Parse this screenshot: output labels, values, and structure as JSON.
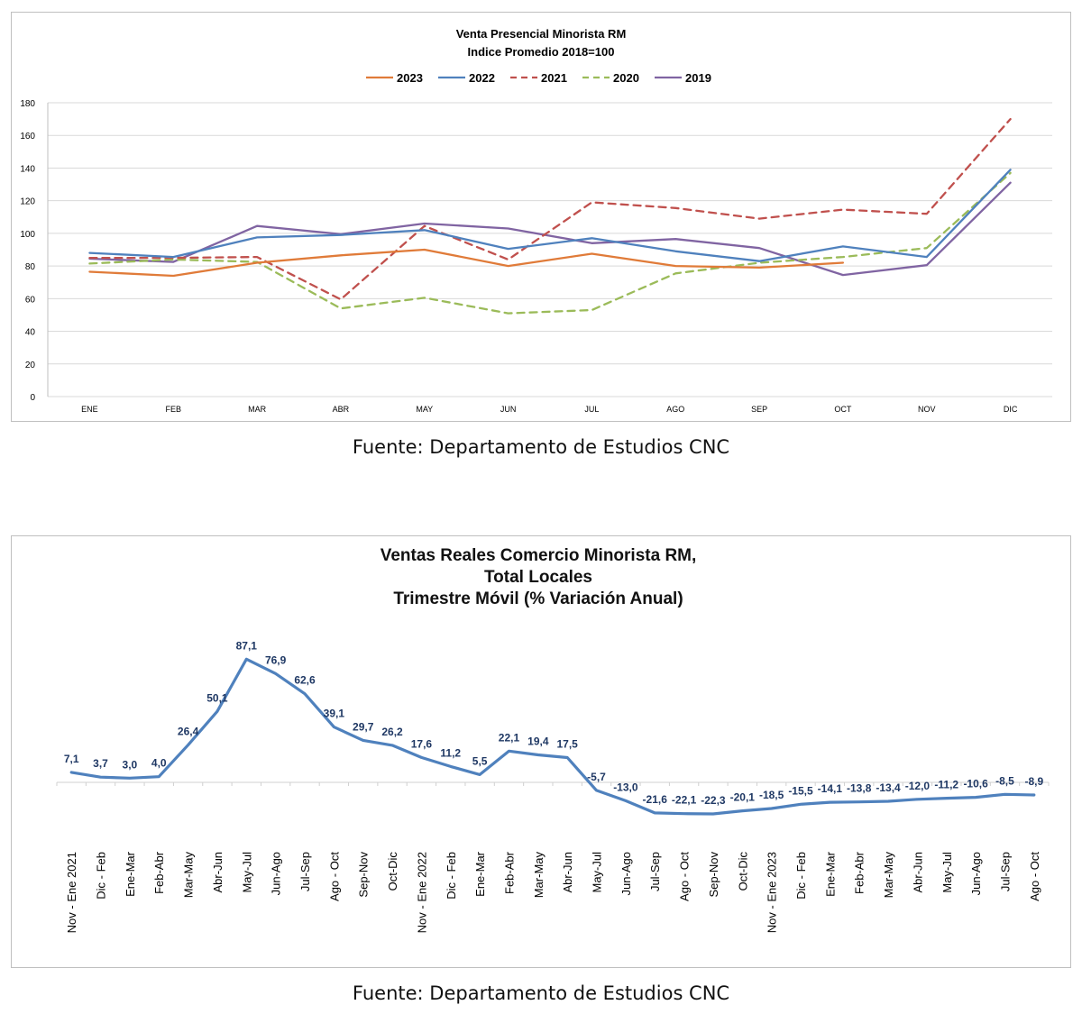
{
  "charts": [
    {
      "id": "retail",
      "source": "Fuente: Departamento de Estudios CNC",
      "chart_data": {
        "type": "line",
        "title": "Venta Presencial Minorista RM",
        "subtitle": "Indice Promedio 2018=100",
        "categories": [
          "ENE",
          "FEB",
          "MAR",
          "ABR",
          "MAY",
          "JUN",
          "JUL",
          "AGO",
          "SEP",
          "OCT",
          "NOV",
          "DIC"
        ],
        "ylim": [
          0,
          180
        ],
        "yticks": [
          0,
          20,
          40,
          60,
          80,
          100,
          120,
          140,
          160,
          180
        ],
        "grid": true,
        "legend_position": "top",
        "series": [
          {
            "name": "2023",
            "color": "#E07B39",
            "dashed": false,
            "values": [
              76.5,
              74,
              82,
              86.5,
              90,
              80,
              87.5,
              80,
              79,
              82,
              null,
              null
            ]
          },
          {
            "name": "2022",
            "color": "#4F81BD",
            "dashed": false,
            "values": [
              88,
              85.5,
              97.5,
              99,
              102,
              90.5,
              97,
              89,
              83,
              92,
              85.5,
              139
            ]
          },
          {
            "name": "2021",
            "color": "#C0504D",
            "dashed": true,
            "values": [
              85,
              85,
              85.5,
              59.5,
              104.5,
              84,
              119,
              115.5,
              109,
              114.5,
              112,
              170
            ]
          },
          {
            "name": "2020",
            "color": "#9BBB59",
            "dashed": true,
            "values": [
              81.5,
              84,
              82.5,
              54,
              60.5,
              51,
              53,
              75.5,
              82,
              85.5,
              91,
              137
            ]
          },
          {
            "name": "2019",
            "color": "#8064A2",
            "dashed": false,
            "values": [
              84.5,
              82.5,
              104.5,
              99.5,
              106,
              103,
              94,
              96.5,
              91,
              74.5,
              80.5,
              131
            ]
          }
        ]
      }
    },
    {
      "id": "realsales",
      "source": "Fuente: Departamento de Estudios CNC",
      "chart_data": {
        "type": "line",
        "title_lines": [
          "Ventas Reales Comercio Minorista RM,",
          "Total Locales",
          "Trimestre Móvil (% Variación Anual)"
        ],
        "color": "#4F81BD",
        "grid": false,
        "categories": [
          "Nov - Ene 2021",
          "Dic - Feb",
          "Ene-Mar",
          "Feb-Abr",
          "Mar-May",
          "Abr-Jun",
          "May-Jul",
          "Jun-Ago",
          "Jul-Sep",
          "Ago - Oct",
          "Sep-Nov",
          "Oct-Dic",
          "Nov - Ene 2022",
          "Dic - Feb",
          "Ene-Mar",
          "Feb-Abr",
          "Mar-May",
          "Abr-Jun",
          "May-Jul",
          "Jun-Ago",
          "Jul-Sep",
          "Ago - Oct",
          "Sep-Nov",
          "Oct-Dic",
          "Nov - Ene 2023",
          "Dic - Feb",
          "Ene-Mar",
          "Feb-Abr",
          "Mar-May",
          "Abr-Jun",
          "May-Jul",
          "Jun-Ago",
          "Jul-Sep",
          "Ago - Oct"
        ],
        "values": [
          7.1,
          3.7,
          3.0,
          4.0,
          26.4,
          50.1,
          87.1,
          76.9,
          62.6,
          39.1,
          29.7,
          26.2,
          17.6,
          11.2,
          5.5,
          22.1,
          19.4,
          17.5,
          -5.7,
          -13.0,
          -21.6,
          -22.1,
          -22.3,
          -20.1,
          -18.5,
          -15.5,
          -14.1,
          -13.8,
          -13.4,
          -12.0,
          -11.2,
          -10.6,
          -8.5,
          -8.9
        ],
        "labels": [
          "7,1",
          "3,7",
          "3,0",
          "4,0",
          "26,4",
          "50,1",
          "87,1",
          "76,9",
          "62,6",
          "39,1",
          "29,7",
          "26,2",
          "17,6",
          "11,2",
          "5,5",
          "22,1",
          "19,4",
          "17,5",
          "-5,7",
          "-13,0",
          "-21,6",
          "-22,1",
          "-22,3",
          "-20,1",
          "-18,5",
          "-15,5",
          "-14,1",
          "-13,8",
          "-13,4",
          "-12,0",
          "-11,2",
          "-10,6",
          "-8,5",
          "-8,9"
        ]
      }
    }
  ]
}
